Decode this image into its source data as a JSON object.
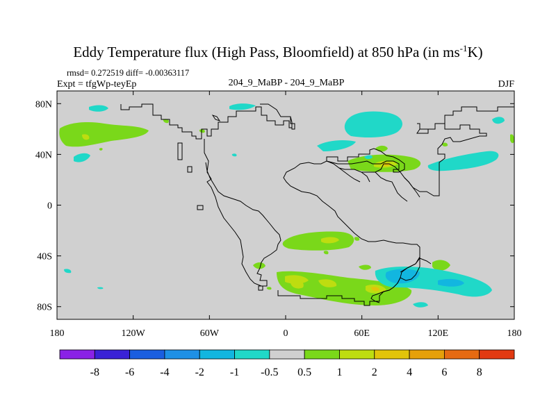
{
  "chart_data": {
    "type": "heatmap",
    "title_main": "Eddy Temperature flux (High Pass, Bloomfield) at 850 hPa (in ms",
    "title_sup": "-1",
    "title_end": "K)",
    "stats": "rmsd= 0.272519 diff= -0.00363117",
    "experiment": "Expt = tfgWp-teyEp",
    "center_label": "204_9_MaBP - 204_9_MaBP",
    "season": "DJF",
    "x_ticks": [
      "180",
      "120W",
      "60W",
      "0",
      "60E",
      "120E",
      "180"
    ],
    "y_ticks": [
      "80N",
      "40N",
      "0",
      "40S",
      "80S"
    ],
    "colorbar": {
      "labels": [
        "-8",
        "-6",
        "-4",
        "-2",
        "-1",
        "-0.5",
        "0.5",
        "1",
        "2",
        "4",
        "6",
        "8"
      ],
      "colors": [
        "#8a22e6",
        "#3a22d6",
        "#1a5ee0",
        "#1e90e6",
        "#12b6e0",
        "#20d8c8",
        "#d0d0d0",
        "#7ad81a",
        "#bedd10",
        "#e2c40a",
        "#e6a00a",
        "#e66a12",
        "#e23a12"
      ]
    },
    "background_color": "#d0d0d0"
  }
}
